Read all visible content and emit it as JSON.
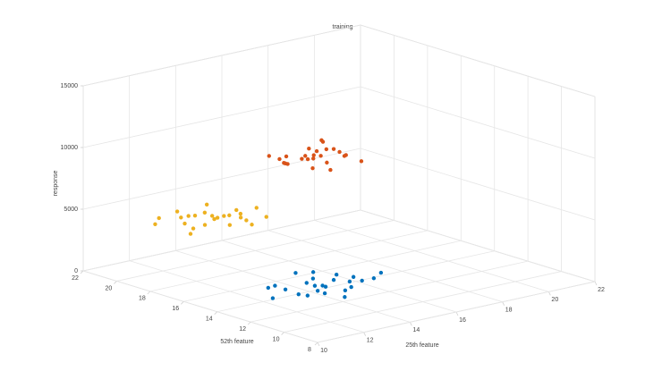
{
  "chart_data": {
    "type": "scatter3d",
    "title": "training",
    "xlabel": "25th feature",
    "ylabel": "52th feature",
    "zlabel": "response",
    "xlim": [
      10,
      22
    ],
    "ylim": [
      8,
      22
    ],
    "zlim": [
      0,
      15000
    ],
    "xticks": [
      10,
      12,
      14,
      16,
      18,
      20,
      22
    ],
    "yticks": [
      8,
      10,
      12,
      14,
      16,
      18,
      20,
      22
    ],
    "zticks": [
      0,
      5000,
      10000,
      15000
    ],
    "grid": true,
    "series": [
      {
        "color": "#0072BD",
        "x": [
          14.2,
          13.1,
          15.4,
          14.8,
          12.9,
          13.7,
          15.9,
          14.5,
          13.3,
          14.9,
          16.2,
          12.5,
          14.0,
          15.1,
          13.8,
          14.6,
          12.8,
          15.6,
          13.5,
          14.3,
          16.8,
          11.9,
          14.7,
          13.9,
          15.3
        ],
        "y": [
          13.5,
          14.2,
          12.8,
          14.9,
          12.6,
          13.1,
          14.0,
          12.2,
          15.1,
          13.8,
          13.2,
          14.4,
          11.9,
          15.3,
          13.9,
          12.7,
          13.0,
          14.6,
          12.4,
          14.1,
          13.6,
          13.3,
          15.8,
          12.9,
          13.4
        ],
        "z": [
          600,
          450,
          800,
          350,
          700,
          550,
          400,
          900,
          300,
          650,
          500,
          750,
          420,
          580,
          820,
          380,
          680,
          460,
          720,
          300,
          540,
          610,
          470,
          880,
          520
        ]
      },
      {
        "color": "#EDB120",
        "x": [
          13.5,
          12.8,
          14.2,
          13.0,
          14.6,
          12.4,
          13.9,
          15.1,
          13.3,
          12.1,
          14.0,
          13.7,
          12.9,
          14.8,
          13.2,
          12.6,
          14.4,
          13.6,
          15.4,
          12.3,
          13.8,
          14.1,
          13.1,
          12.7,
          14.5
        ],
        "y": [
          19.0,
          19.8,
          18.4,
          20.3,
          19.2,
          18.9,
          20.0,
          18.1,
          17.8,
          20.6,
          19.5,
          18.7,
          18.3,
          19.9,
          20.8,
          19.3,
          18.0,
          19.7,
          19.1,
          18.6,
          17.5,
          20.4,
          19.6,
          21.2,
          18.8
        ],
        "z": [
          4000,
          3600,
          4400,
          3800,
          4200,
          3300,
          4600,
          3900,
          4100,
          3500,
          3700,
          4300,
          4800,
          3400,
          4000,
          4500,
          3600,
          3200,
          4100,
          3900,
          4400,
          3700,
          4200,
          3500,
          3800
        ]
      },
      {
        "color": "#D95319",
        "x": [
          15.9,
          15.2,
          16.6,
          14.8,
          17.1,
          15.5,
          16.2,
          14.5,
          16.9,
          15.7,
          16.4,
          15.0,
          17.4,
          16.0,
          15.3,
          16.7,
          14.9,
          15.8,
          16.3,
          17.0,
          15.6,
          16.1,
          14.7,
          15.4,
          16.5
        ],
        "y": [
          16.4,
          17.1,
          15.8,
          16.9,
          16.2,
          15.4,
          17.5,
          16.0,
          17.0,
          15.1,
          16.6,
          17.8,
          15.6,
          16.8,
          15.9,
          17.3,
          15.5,
          16.3,
          15.0,
          16.7,
          17.6,
          16.1,
          16.5,
          14.9,
          17.2
        ],
        "z": [
          9000,
          8600,
          9500,
          9200,
          8800,
          9800,
          8400,
          9300,
          9100,
          8700,
          10200,
          9000,
          8500,
          9600,
          9400,
          8900,
          10000,
          8300,
          9700,
          9200,
          8800,
          10400,
          9100,
          9500,
          8700
        ]
      }
    ]
  }
}
